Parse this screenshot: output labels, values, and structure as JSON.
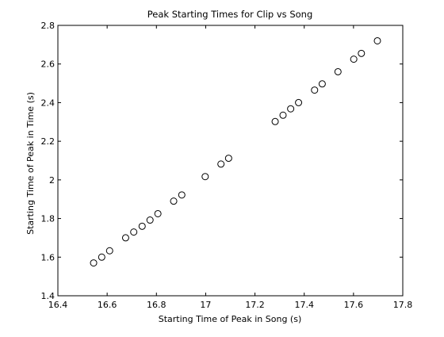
{
  "chart_data": {
    "type": "scatter",
    "title": "Peak Starting Times for Clip vs Song",
    "xlabel": "Starting Time of Peak in Song (s)",
    "ylabel": "Starting Time of Peak in Time (s)",
    "xlim": [
      16.4,
      17.8
    ],
    "ylim": [
      1.4,
      2.8
    ],
    "xticks": [
      16.4,
      16.6,
      16.8,
      17,
      17.2,
      17.4,
      17.6,
      17.8
    ],
    "xtick_labels": [
      "16.4",
      "16.6",
      "16.8",
      "17",
      "17.2",
      "17.4",
      "17.6",
      "17.8"
    ],
    "yticks": [
      1.4,
      1.6,
      1.8,
      2,
      2.2,
      2.4,
      2.6,
      2.8
    ],
    "ytick_labels": [
      "1.4",
      "1.6",
      "1.8",
      "2",
      "2.2",
      "2.4",
      "2.6",
      "2.8"
    ],
    "grid": false,
    "marker": "open-circle",
    "marker_color": "#000000",
    "points": [
      {
        "x": 16.545,
        "y": 1.57
      },
      {
        "x": 16.578,
        "y": 1.6
      },
      {
        "x": 16.61,
        "y": 1.633
      },
      {
        "x": 16.675,
        "y": 1.7
      },
      {
        "x": 16.708,
        "y": 1.73
      },
      {
        "x": 16.742,
        "y": 1.76
      },
      {
        "x": 16.774,
        "y": 1.792
      },
      {
        "x": 16.806,
        "y": 1.825
      },
      {
        "x": 16.87,
        "y": 1.89
      },
      {
        "x": 16.903,
        "y": 1.922
      },
      {
        "x": 16.998,
        "y": 2.017
      },
      {
        "x": 17.062,
        "y": 2.082
      },
      {
        "x": 17.093,
        "y": 2.112
      },
      {
        "x": 17.282,
        "y": 2.302
      },
      {
        "x": 17.314,
        "y": 2.335
      },
      {
        "x": 17.345,
        "y": 2.368
      },
      {
        "x": 17.377,
        "y": 2.4
      },
      {
        "x": 17.442,
        "y": 2.465
      },
      {
        "x": 17.473,
        "y": 2.497
      },
      {
        "x": 17.537,
        "y": 2.56
      },
      {
        "x": 17.601,
        "y": 2.625
      },
      {
        "x": 17.632,
        "y": 2.655
      },
      {
        "x": 17.697,
        "y": 2.72
      }
    ]
  }
}
